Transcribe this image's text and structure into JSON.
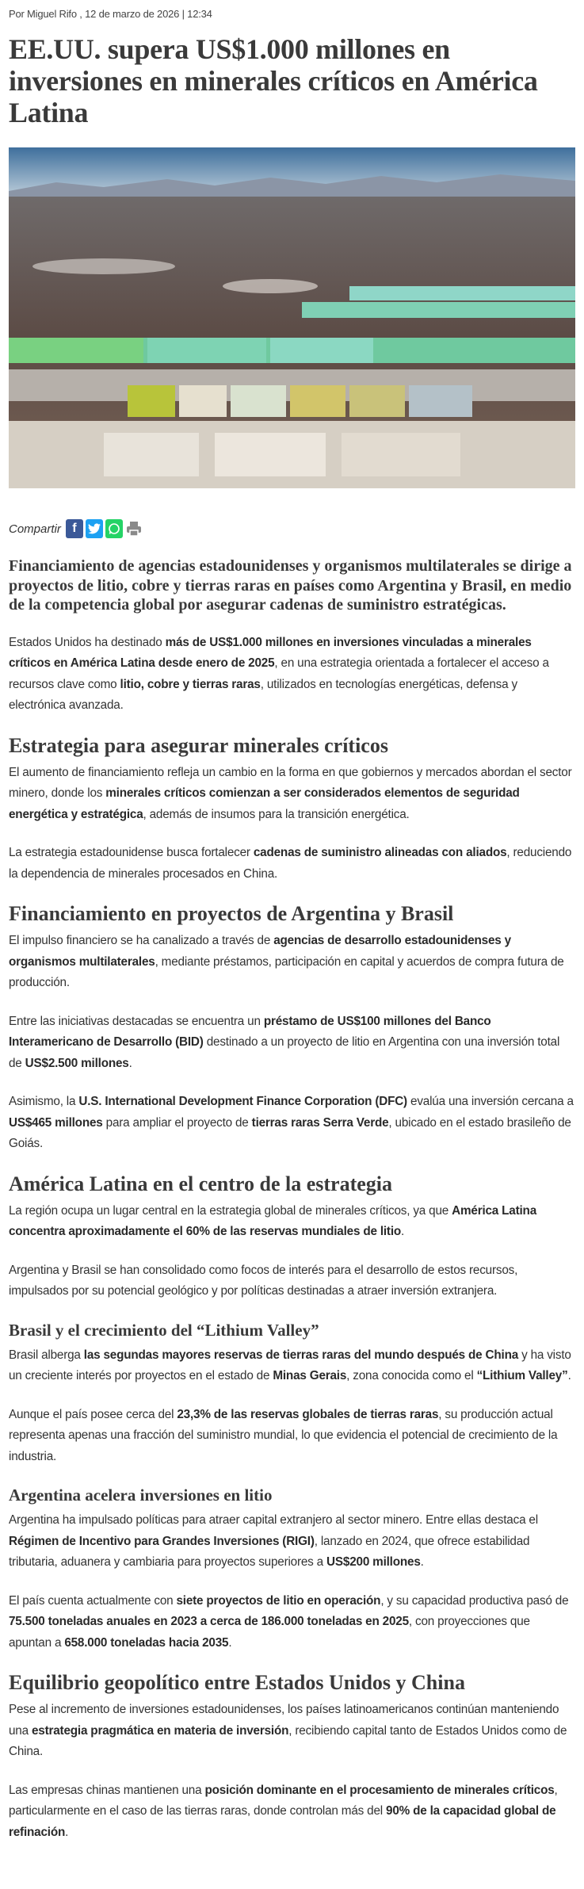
{
  "article": {
    "byline": "Por Miguel Rifo , 12 de marzo de 2026 | 12:34",
    "title": "EE.UU. supera US$1.000 millones en inversiones en minerales críticos en América Latina",
    "share": {
      "label": "Compartir",
      "icons": [
        {
          "name": "facebook-icon",
          "glyph": "f",
          "color": "#3b5998"
        },
        {
          "name": "twitter-icon",
          "glyph": "t",
          "color": "#1da1f2"
        },
        {
          "name": "whatsapp-icon",
          "glyph": "w",
          "color": "#25d366"
        },
        {
          "name": "print-icon",
          "glyph": "p",
          "color": "#8a8a8a"
        }
      ]
    },
    "lede": "Financiamiento de agencias estadounidenses y organismos multilaterales se dirige a proyectos de litio, cobre y tierras raras en países como Argentina y Brasil, en medio de la competencia global por asegurar cadenas de suministro estratégicas.",
    "blocks": [
      {
        "type": "p",
        "segs": [
          {
            "t": "Estados Unidos ha destinado "
          },
          {
            "t": "más de US$1.000 millones en inversiones vinculadas a minerales críticos en América Latina desde enero de 2025",
            "b": true
          },
          {
            "t": ", en una estrategia orientada a fortalecer el acceso a recursos clave como "
          },
          {
            "t": "litio, cobre y tierras raras",
            "b": true
          },
          {
            "t": ", utilizados en tecnologías energéticas, defensa y electrónica avanzada."
          }
        ]
      },
      {
        "type": "h2",
        "text": "Estrategia para asegurar minerales críticos"
      },
      {
        "type": "p",
        "segs": [
          {
            "t": "El aumento de financiamiento refleja un cambio en la forma en que gobiernos y mercados abordan el sector minero, donde los "
          },
          {
            "t": "minerales críticos comienzan a ser considerados elementos de seguridad energética y estratégica",
            "b": true
          },
          {
            "t": ", además de insumos para la transición energética."
          }
        ]
      },
      {
        "type": "p",
        "segs": [
          {
            "t": "La estrategia estadounidense busca fortalecer "
          },
          {
            "t": "cadenas de suministro alineadas con aliados",
            "b": true
          },
          {
            "t": ", reduciendo la dependencia de minerales procesados en China."
          }
        ]
      },
      {
        "type": "h2",
        "text": "Financiamiento en proyectos de Argentina y Brasil"
      },
      {
        "type": "p",
        "segs": [
          {
            "t": "El impulso financiero se ha canalizado a través de "
          },
          {
            "t": "agencias de desarrollo estadounidenses y organismos multilaterales",
            "b": true
          },
          {
            "t": ", mediante préstamos, participación en capital y acuerdos de compra futura de producción."
          }
        ]
      },
      {
        "type": "p",
        "segs": [
          {
            "t": "Entre las iniciativas destacadas se encuentra un "
          },
          {
            "t": "préstamo de US$100 millones del Banco Interamericano de Desarrollo (BID)",
            "b": true
          },
          {
            "t": " destinado a un proyecto de litio en Argentina con una inversión total de "
          },
          {
            "t": "US$2.500 millones",
            "b": true
          },
          {
            "t": "."
          }
        ]
      },
      {
        "type": "p",
        "segs": [
          {
            "t": "Asimismo, la "
          },
          {
            "t": "U.S. International Development Finance Corporation (DFC)",
            "b": true
          },
          {
            "t": " evalúa una inversión cercana a "
          },
          {
            "t": "US$465 millones",
            "b": true
          },
          {
            "t": " para ampliar el proyecto de "
          },
          {
            "t": "tierras raras Serra Verde",
            "b": true
          },
          {
            "t": ", ubicado en el estado brasileño de Goiás."
          }
        ]
      },
      {
        "type": "h2",
        "text": "América Latina en el centro de la estrategia"
      },
      {
        "type": "p",
        "segs": [
          {
            "t": "La región ocupa un lugar central en la estrategia global de minerales críticos, ya que "
          },
          {
            "t": "América Latina concentra aproximadamente el 60% de las reservas mundiales de litio",
            "b": true
          },
          {
            "t": "."
          }
        ]
      },
      {
        "type": "p",
        "segs": [
          {
            "t": "Argentina y Brasil se han consolidado como focos de interés para el desarrollo de estos recursos, impulsados por su potencial geológico y por políticas destinadas a atraer inversión extranjera."
          }
        ]
      },
      {
        "type": "h3",
        "text": "Brasil y el crecimiento del “Lithium Valley”"
      },
      {
        "type": "p",
        "segs": [
          {
            "t": "Brasil alberga "
          },
          {
            "t": "las segundas mayores reservas de tierras raras del mundo después de China",
            "b": true
          },
          {
            "t": " y ha visto un creciente interés por proyectos en el estado de "
          },
          {
            "t": "Minas Gerais",
            "b": true
          },
          {
            "t": ", zona conocida como el "
          },
          {
            "t": "“Lithium Valley”",
            "b": true
          },
          {
            "t": "."
          }
        ]
      },
      {
        "type": "p",
        "segs": [
          {
            "t": "Aunque el país posee cerca del "
          },
          {
            "t": "23,3% de las reservas globales de tierras raras",
            "b": true
          },
          {
            "t": ", su producción actual representa apenas una fracción del suministro mundial, lo que evidencia el potencial de crecimiento de la industria."
          }
        ]
      },
      {
        "type": "h3",
        "text": "Argentina acelera inversiones en litio"
      },
      {
        "type": "p",
        "segs": [
          {
            "t": "Argentina ha impulsado políticas para atraer capital extranjero al sector minero. Entre ellas destaca el "
          },
          {
            "t": "Régimen de Incentivo para Grandes Inversiones (RIGI)",
            "b": true
          },
          {
            "t": ", lanzado en 2024, que ofrece estabilidad tributaria, aduanera y cambiaria para proyectos superiores a "
          },
          {
            "t": "US$200 millones",
            "b": true
          },
          {
            "t": "."
          }
        ]
      },
      {
        "type": "p",
        "segs": [
          {
            "t": "El país cuenta actualmente con "
          },
          {
            "t": "siete proyectos de litio en operación",
            "b": true
          },
          {
            "t": ", y su capacidad productiva pasó de "
          },
          {
            "t": "75.500 toneladas anuales en 2023 a cerca de 186.000 toneladas en 2025",
            "b": true
          },
          {
            "t": ", con proyecciones que apuntan a "
          },
          {
            "t": "658.000 toneladas hacia 2035",
            "b": true
          },
          {
            "t": "."
          }
        ]
      },
      {
        "type": "h2",
        "text": "Equilibrio geopolítico entre Estados Unidos y China"
      },
      {
        "type": "p",
        "segs": [
          {
            "t": "Pese al incremento de inversiones estadounidenses, los países latinoamericanos continúan manteniendo una "
          },
          {
            "t": "estrategia pragmática en materia de inversión",
            "b": true
          },
          {
            "t": ", recibiendo capital tanto de Estados Unidos como de China."
          }
        ]
      },
      {
        "type": "p",
        "segs": [
          {
            "t": "Las empresas chinas mantienen una "
          },
          {
            "t": "posición dominante en el procesamiento de minerales críticos",
            "b": true
          },
          {
            "t": ", particularmente en el caso de las tierras raras, donde controlan más del "
          },
          {
            "t": "90% de la capacidad global de refinación",
            "b": true
          },
          {
            "t": "."
          }
        ]
      }
    ]
  }
}
